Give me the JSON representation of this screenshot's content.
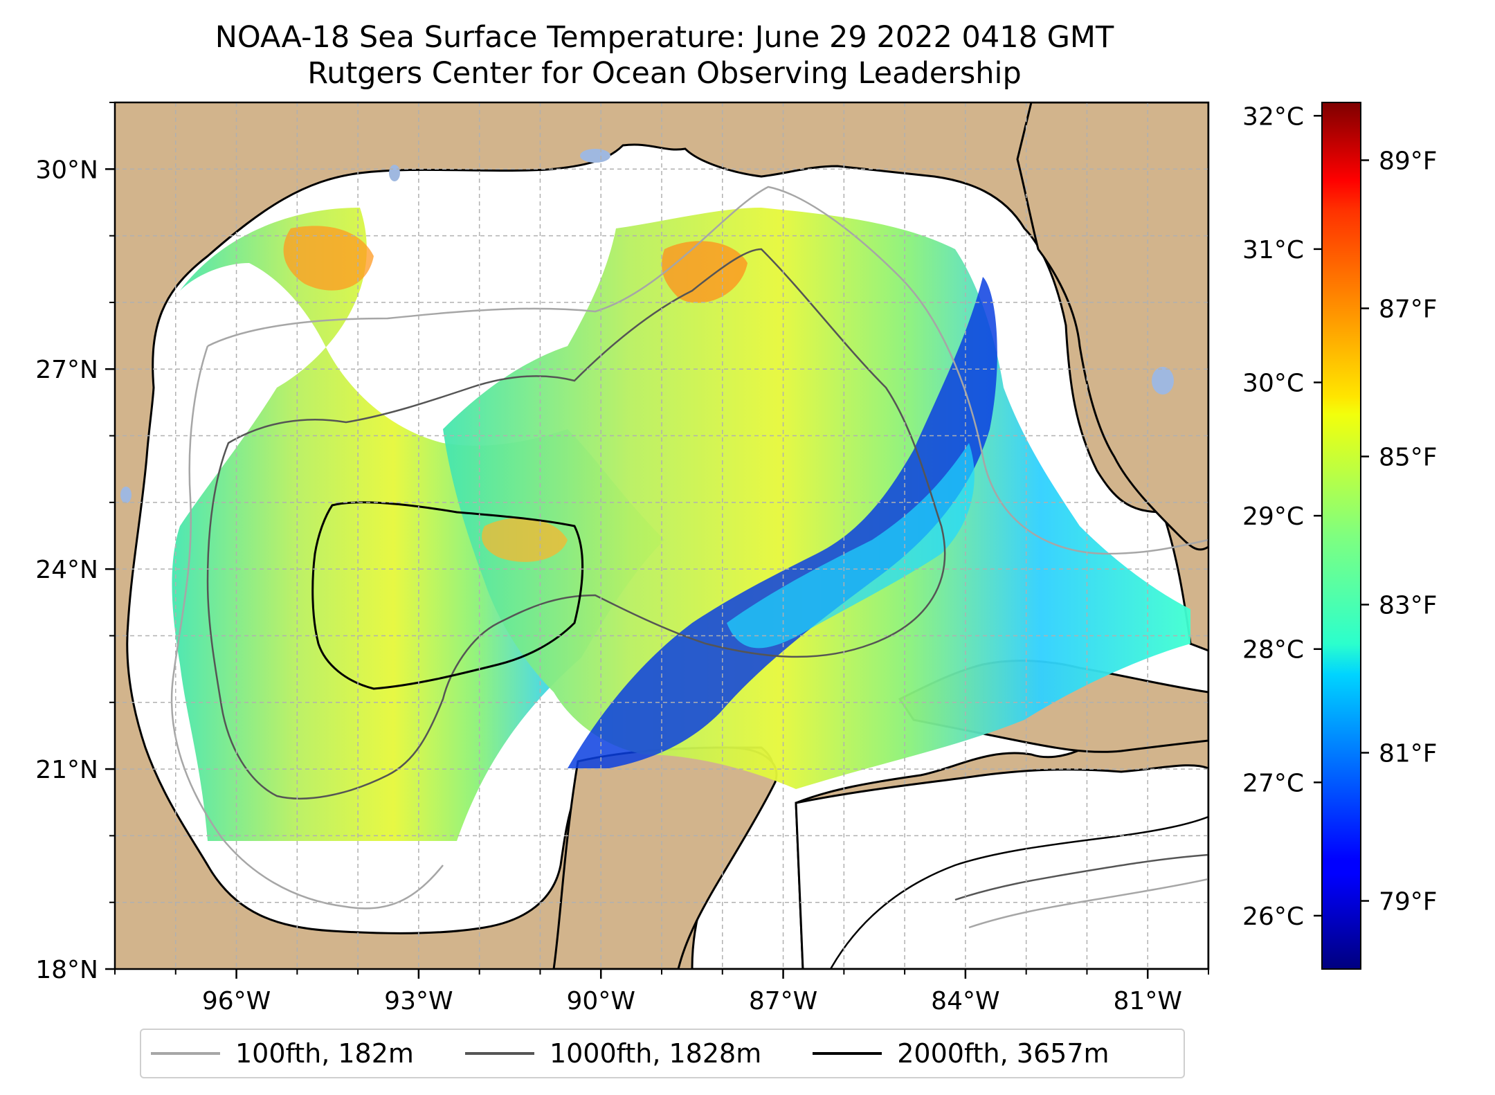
{
  "title": {
    "line1": "NOAA-18 Sea Surface Temperature: June 29 2022 0418 GMT",
    "line2": "Rutgers Center for Ocean Observing Leadership"
  },
  "map": {
    "lon_range": [
      -98,
      -80
    ],
    "lat_range": [
      18,
      31
    ],
    "lon_ticks": [
      {
        "value": -96,
        "label": "96°W"
      },
      {
        "value": -93,
        "label": "93°W"
      },
      {
        "value": -90,
        "label": "90°W"
      },
      {
        "value": -87,
        "label": "87°W"
      },
      {
        "value": -84,
        "label": "84°W"
      },
      {
        "value": -81,
        "label": "81°W"
      }
    ],
    "lat_ticks": [
      {
        "value": 30,
        "label": "30°N"
      },
      {
        "value": 27,
        "label": "27°N"
      },
      {
        "value": 24,
        "label": "24°N"
      },
      {
        "value": 21,
        "label": "21°N"
      },
      {
        "value": 18,
        "label": "18°N"
      }
    ],
    "gridlines": true,
    "colors": {
      "land": "#d2b48c",
      "no_data": "#ffffff",
      "lakes": "#9fb8e0",
      "grid": "#b0b0b0"
    }
  },
  "colorbar": {
    "colormap": "jet",
    "range_c": [
      25.6,
      32.1
    ],
    "celsius_ticks": [
      {
        "value": 32,
        "label": "32°C"
      },
      {
        "value": 31,
        "label": "31°C"
      },
      {
        "value": 30,
        "label": "30°C"
      },
      {
        "value": 29,
        "label": "29°C"
      },
      {
        "value": 28,
        "label": "28°C"
      },
      {
        "value": 27,
        "label": "27°C"
      },
      {
        "value": 26,
        "label": "26°C"
      }
    ],
    "fahrenheit_ticks": [
      {
        "value": 89,
        "label": "89°F"
      },
      {
        "value": 87,
        "label": "87°F"
      },
      {
        "value": 85,
        "label": "85°F"
      },
      {
        "value": 83,
        "label": "83°F"
      },
      {
        "value": 81,
        "label": "81°F"
      },
      {
        "value": 79,
        "label": "79°F"
      }
    ]
  },
  "legend": {
    "items": [
      {
        "label": "100fth, 182m",
        "color": "#a6a6a6"
      },
      {
        "label": "1000fth, 1828m",
        "color": "#555555"
      },
      {
        "label": "2000fth, 3657m",
        "color": "#000000"
      }
    ]
  }
}
